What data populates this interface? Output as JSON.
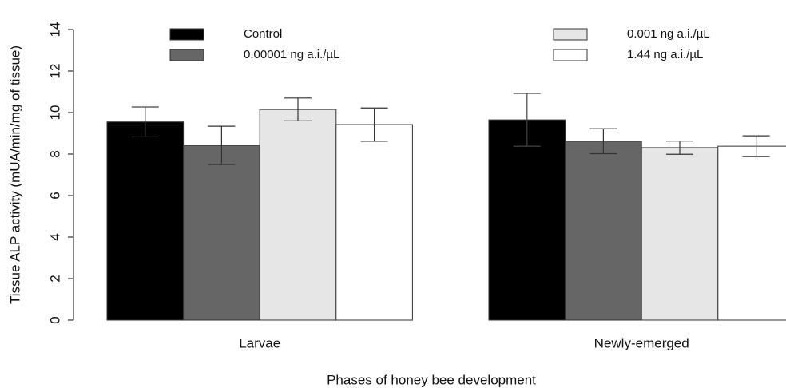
{
  "chart_data": {
    "type": "bar",
    "ylabel": "Tissue ALP activity (mUA/min/mg of tissue)",
    "xlabel": "Phases of honey bee development",
    "categories": [
      "Larvae",
      "Newly-emerged"
    ],
    "series": [
      {
        "name": "Control",
        "color": "#000000",
        "values": [
          9.55,
          9.65
        ],
        "errors": [
          0.72,
          1.27
        ]
      },
      {
        "name": "0.00001 ng a.i./µL",
        "color": "#666666",
        "values": [
          8.42,
          8.62
        ],
        "errors": [
          0.92,
          0.6
        ]
      },
      {
        "name": "0.001 ng a.i./µL",
        "color": "#e6e6e6",
        "values": [
          10.15,
          8.31
        ],
        "errors": [
          0.55,
          0.32
        ]
      },
      {
        "name": "1.44 ng a.i./µL",
        "color": "#ffffff",
        "values": [
          9.42,
          8.38
        ],
        "errors": [
          0.8,
          0.5
        ]
      }
    ],
    "ylim": [
      0,
      14
    ],
    "yticks": [
      0,
      2,
      4,
      6,
      8,
      10,
      12,
      14
    ]
  }
}
